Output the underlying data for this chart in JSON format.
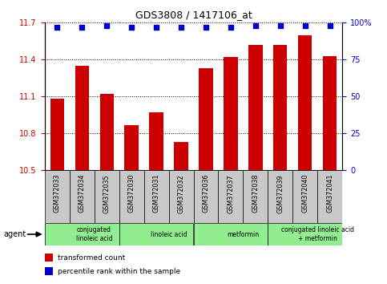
{
  "title": "GDS3808 / 1417106_at",
  "samples": [
    "GSM372033",
    "GSM372034",
    "GSM372035",
    "GSM372030",
    "GSM372031",
    "GSM372032",
    "GSM372036",
    "GSM372037",
    "GSM372038",
    "GSM372039",
    "GSM372040",
    "GSM372041"
  ],
  "bar_values": [
    11.08,
    11.35,
    11.12,
    10.87,
    10.97,
    10.73,
    11.33,
    11.42,
    11.52,
    11.52,
    11.6,
    11.43
  ],
  "percentile_values": [
    97,
    97,
    98,
    97,
    97,
    97,
    97,
    97,
    98,
    98,
    98,
    98
  ],
  "bar_color": "#cc0000",
  "percentile_color": "#0000cc",
  "ylim_left": [
    10.5,
    11.7
  ],
  "ylim_right": [
    0,
    100
  ],
  "yticks_left": [
    10.5,
    10.8,
    11.1,
    11.4,
    11.7
  ],
  "yticks_right": [
    0,
    25,
    50,
    75,
    100
  ],
  "agent_groups": [
    {
      "label": "conjugated\nlinoleic acid",
      "start": 0,
      "end": 3,
      "color": "#90ee90"
    },
    {
      "label": "linoleic acid",
      "start": 3,
      "end": 6,
      "color": "#90ee90"
    },
    {
      "label": "metformin",
      "start": 6,
      "end": 9,
      "color": "#90ee90"
    },
    {
      "label": "conjugated linoleic acid\n+ metformin",
      "start": 9,
      "end": 12,
      "color": "#90ee90"
    }
  ],
  "agent_label": "agent",
  "legend_items": [
    {
      "color": "#cc0000",
      "label": "transformed count"
    },
    {
      "color": "#0000cc",
      "label": "percentile rank within the sample"
    }
  ],
  "bar_width": 0.55,
  "grid_color": "#000000",
  "background_color": "#ffffff",
  "sample_box_color": "#c8c8c8"
}
